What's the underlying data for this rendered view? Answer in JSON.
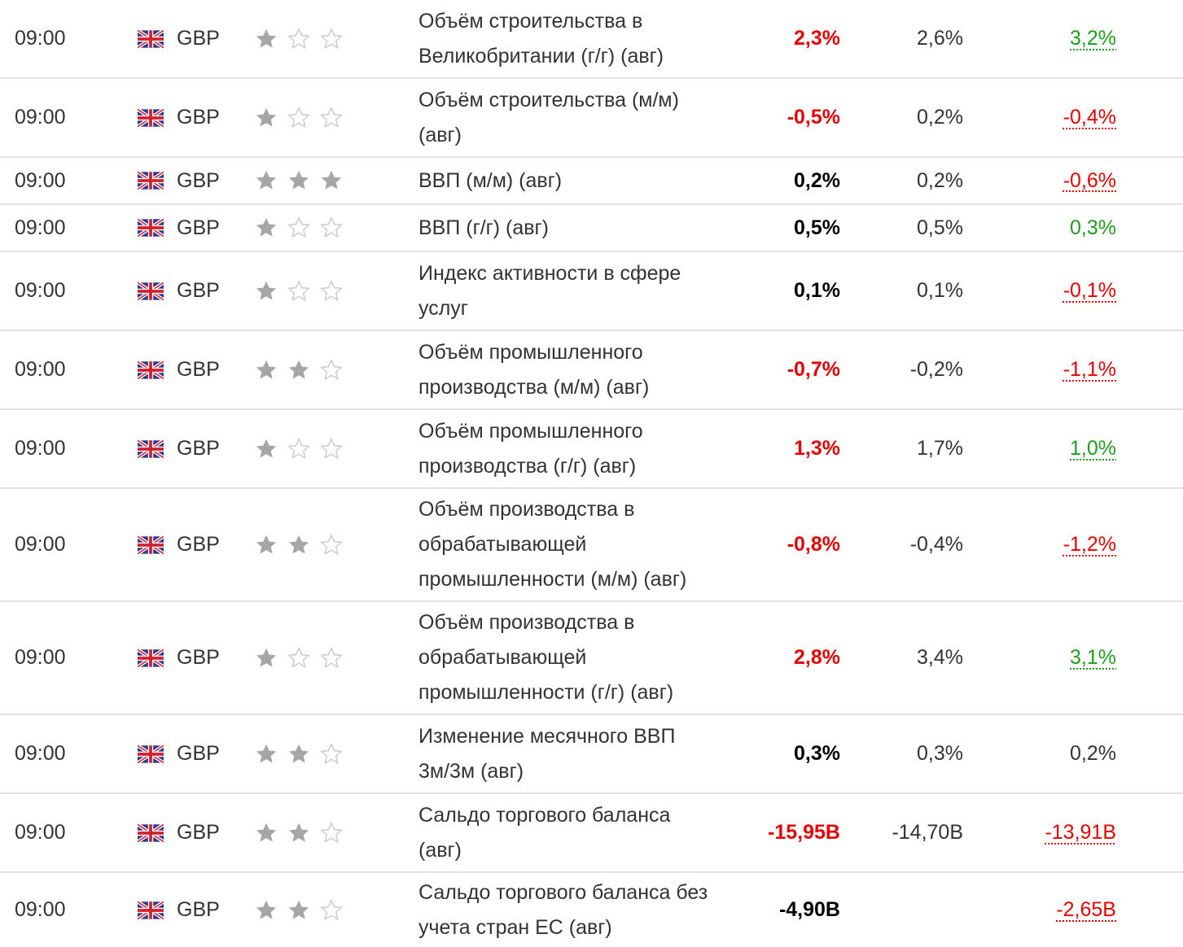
{
  "colors": {
    "red": "#e60000",
    "green": "#1f9d1f",
    "text": "#333333",
    "separator": "#e1e1e1",
    "star_filled": "#a6a6a6",
    "star_empty": "#cccccc"
  },
  "rows": [
    {
      "time": "09:00",
      "currency": "GBP",
      "flag_icon": "uk-flag-icon",
      "importance": 1,
      "event_lines": [
        "Объём строительства в",
        "Великобритании (г/г) (авг)"
      ],
      "actual": "2,3%",
      "actual_color": "red",
      "forecast": "2,6%",
      "previous": "3,2%",
      "previous_color": "green",
      "previous_revised": true
    },
    {
      "time": "09:00",
      "currency": "GBP",
      "flag_icon": "uk-flag-icon",
      "importance": 1,
      "event_lines": [
        "Объём строительства (м/м)",
        "(авг)"
      ],
      "actual": "-0,5%",
      "actual_color": "red",
      "forecast": "0,2%",
      "previous": "-0,4%",
      "previous_color": "red",
      "previous_revised": true
    },
    {
      "time": "09:00",
      "currency": "GBP",
      "flag_icon": "uk-flag-icon",
      "importance": 3,
      "event_lines": [
        "ВВП (м/м) (авг)"
      ],
      "actual": "0,2%",
      "actual_color": "black",
      "forecast": "0,2%",
      "previous": "-0,6%",
      "previous_color": "red",
      "previous_revised": true
    },
    {
      "time": "09:00",
      "currency": "GBP",
      "flag_icon": "uk-flag-icon",
      "importance": 1,
      "event_lines": [
        "ВВП (г/г) (авг)"
      ],
      "actual": "0,5%",
      "actual_color": "black",
      "forecast": "0,5%",
      "previous": "0,3%",
      "previous_color": "green",
      "previous_revised": false
    },
    {
      "time": "09:00",
      "currency": "GBP",
      "flag_icon": "uk-flag-icon",
      "importance": 1,
      "event_lines": [
        "Индекс активности в сфере",
        "услуг"
      ],
      "actual": "0,1%",
      "actual_color": "black",
      "forecast": "0,1%",
      "previous": "-0,1%",
      "previous_color": "red",
      "previous_revised": true
    },
    {
      "time": "09:00",
      "currency": "GBP",
      "flag_icon": "uk-flag-icon",
      "importance": 2,
      "event_lines": [
        "Объём промышленного",
        "производства (м/м) (авг)"
      ],
      "actual": "-0,7%",
      "actual_color": "red",
      "forecast": "-0,2%",
      "previous": "-1,1%",
      "previous_color": "red",
      "previous_revised": true
    },
    {
      "time": "09:00",
      "currency": "GBP",
      "flag_icon": "uk-flag-icon",
      "importance": 1,
      "event_lines": [
        "Объём промышленного",
        "производства (г/г) (авг)"
      ],
      "actual": "1,3%",
      "actual_color": "red",
      "forecast": "1,7%",
      "previous": "1,0%",
      "previous_color": "green",
      "previous_revised": true
    },
    {
      "time": "09:00",
      "currency": "GBP",
      "flag_icon": "uk-flag-icon",
      "importance": 2,
      "event_lines": [
        "Объём производства в",
        "обрабатывающей",
        "промышленности (м/м) (авг)"
      ],
      "actual": "-0,8%",
      "actual_color": "red",
      "forecast": "-0,4%",
      "previous": "-1,2%",
      "previous_color": "red",
      "previous_revised": true
    },
    {
      "time": "09:00",
      "currency": "GBP",
      "flag_icon": "uk-flag-icon",
      "importance": 1,
      "event_lines": [
        "Объём производства в",
        "обрабатывающей",
        "промышленности (г/г) (авг)"
      ],
      "actual": "2,8%",
      "actual_color": "red",
      "forecast": "3,4%",
      "previous": "3,1%",
      "previous_color": "green",
      "previous_revised": true
    },
    {
      "time": "09:00",
      "currency": "GBP",
      "flag_icon": "uk-flag-icon",
      "importance": 2,
      "event_lines": [
        "Изменение месячного ВВП",
        "3м/3м (авг)"
      ],
      "actual": "0,3%",
      "actual_color": "black",
      "forecast": "0,3%",
      "previous": "0,2%",
      "previous_color": "text",
      "previous_revised": false
    },
    {
      "time": "09:00",
      "currency": "GBP",
      "flag_icon": "uk-flag-icon",
      "importance": 2,
      "event_lines": [
        "Сальдо торгового баланса",
        "(авг)"
      ],
      "actual": "-15,95B",
      "actual_color": "red",
      "forecast": "-14,70B",
      "previous": "-13,91B",
      "previous_color": "red",
      "previous_revised": true
    },
    {
      "time": "09:00",
      "currency": "GBP",
      "flag_icon": "uk-flag-icon",
      "importance": 2,
      "event_lines": [
        "Сальдо торгового баланса без",
        "учета стран ЕС (авг)"
      ],
      "actual": "-4,90B",
      "actual_color": "black",
      "forecast": "",
      "previous": "-2,65B",
      "previous_color": "red",
      "previous_revised": true
    }
  ]
}
